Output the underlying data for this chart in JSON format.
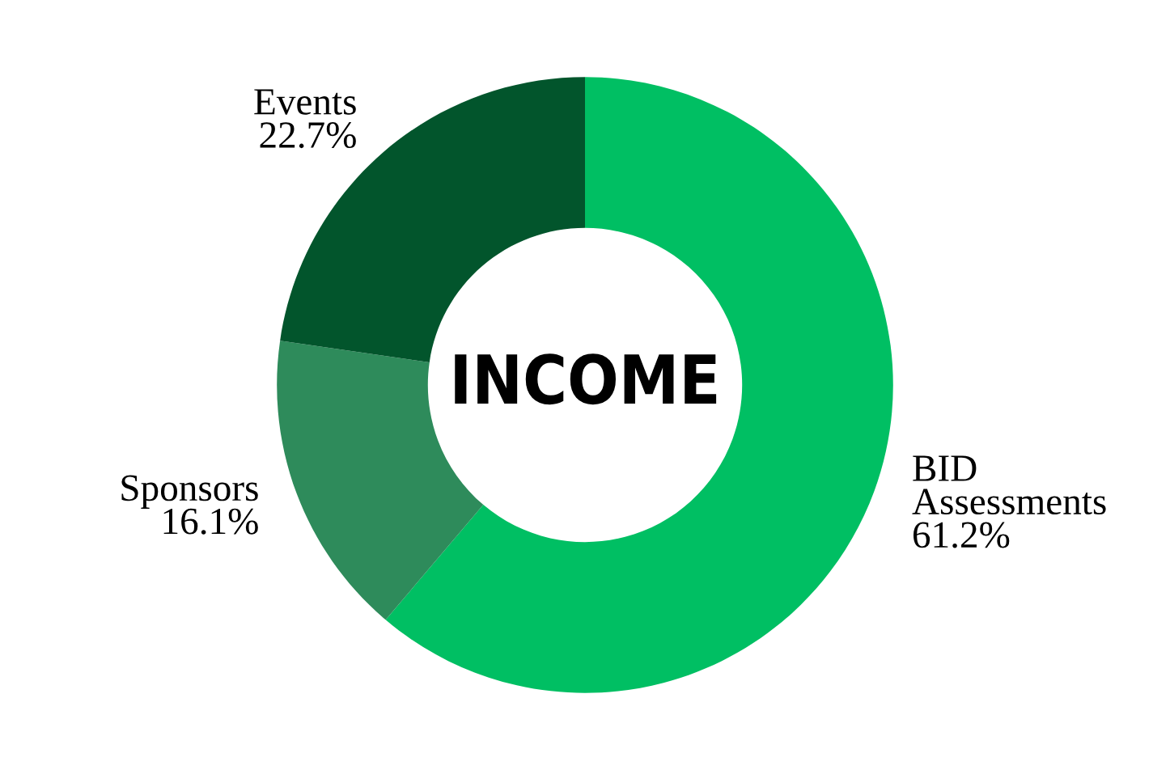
{
  "chart_data": {
    "type": "donut",
    "title": "INCOME",
    "categories": [
      "BID\nAssessments",
      "Sponsors",
      "Events"
    ],
    "values": [
      61.2,
      16.1,
      22.7
    ],
    "value_labels": [
      "61.2%",
      "16.1%",
      "22.7%"
    ],
    "colors": [
      "#00bf63",
      "#2e8b5b",
      "#02552c"
    ]
  }
}
